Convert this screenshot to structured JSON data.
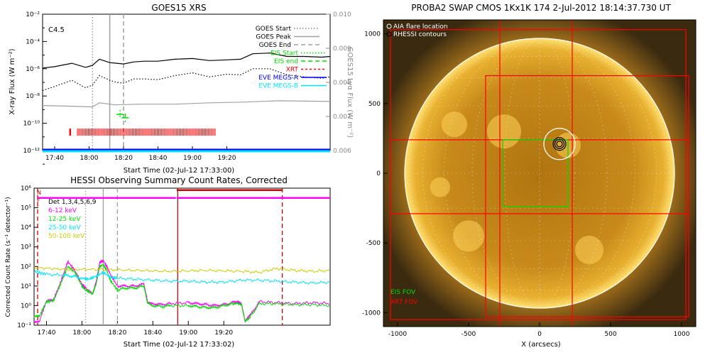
{
  "chart_data": [
    {
      "id": "goes",
      "type": "line",
      "title": "GOES15 XRS",
      "xlabel": "Start Time (02-Jul-12 17:33:00)",
      "ylabel": "X-ray Flux (W m⁻²)",
      "y2label": "GOES15 Lyα Flux (W m⁻²)",
      "x_ticks": [
        "17:40",
        "18:00",
        "18:20",
        "18:40",
        "19:00",
        "19:20"
      ],
      "xlim_min": [
        33,
        200
      ],
      "y_log_range": [
        -12,
        -2
      ],
      "y_ticks": [
        "10⁻²",
        "10⁻⁴",
        "10⁻⁶",
        "10⁻⁸",
        "10⁻¹⁰",
        "10⁻¹²"
      ],
      "y2lim": [
        0.006,
        0.01
      ],
      "y2_ticks": [
        "0.010",
        "0.009",
        "0.008",
        "0.007",
        "0.006"
      ],
      "annotation": "C4.5",
      "vlines": [
        {
          "label": "GOES Start",
          "t": 62,
          "style": "dotted",
          "color": "#a0a0a0"
        },
        {
          "label": "GOES Peak",
          "t": 72,
          "style": "solid",
          "color": "#a0a0a0"
        },
        {
          "label": "GOES End",
          "t": 80,
          "style": "dashed",
          "color": "#a0a0a0"
        }
      ],
      "legend": [
        {
          "label": "GOES Start",
          "style": "dotted",
          "color": "#808080"
        },
        {
          "label": "GOES Peak",
          "style": "solid",
          "color": "#a0a0a0"
        },
        {
          "label": "GOES End",
          "style": "dashed",
          "color": "#a0a0a0"
        },
        {
          "label": "EIS Start",
          "style": "dotted",
          "color": "#00dd00"
        },
        {
          "label": "EIS end",
          "style": "dashed",
          "color": "#00dd00"
        },
        {
          "label": "XRT",
          "style": "dash",
          "color": "#ff0000"
        },
        {
          "label": "EVE MEGS-A",
          "style": "solid",
          "color": "#0000ff"
        },
        {
          "label": "EVE MEGS-B",
          "style": "solid",
          "color": "#00e5ff"
        }
      ],
      "series": [
        {
          "name": "",
          "color": "#000000",
          "style": "solid",
          "x": [
            33,
            40,
            50,
            58,
            62,
            66,
            72,
            76,
            80,
            86,
            92,
            100,
            110,
            120,
            130,
            140,
            148,
            155,
            165,
            175,
            185,
            195,
            200
          ],
          "y": [
            -5.95,
            -5.85,
            -5.6,
            -5.9,
            -5.75,
            -5.3,
            -5.55,
            -5.6,
            -5.65,
            -5.5,
            -5.45,
            -5.45,
            -5.3,
            -5.25,
            -5.4,
            -5.35,
            -5.3,
            -4.9,
            -4.85,
            -5.1,
            -5.1,
            -5.15,
            -5.1
          ]
        },
        {
          "name": "",
          "color": "#000000",
          "style": "dotted",
          "x": [
            33,
            40,
            50,
            58,
            62,
            66,
            72,
            76,
            80,
            86,
            92,
            100,
            110,
            120,
            130,
            140,
            148,
            155,
            165,
            175,
            185,
            195,
            200
          ],
          "y": [
            -7.6,
            -7.3,
            -6.85,
            -7.4,
            -7.2,
            -6.5,
            -6.85,
            -7.0,
            -7.05,
            -6.75,
            -6.75,
            -6.8,
            -6.5,
            -6.3,
            -6.6,
            -6.4,
            -6.45,
            -6.0,
            -6.0,
            -6.45,
            -6.6,
            -6.7,
            -6.6
          ]
        },
        {
          "name": "",
          "color": "#a0a0a0",
          "style": "solid",
          "x": [
            33,
            50,
            62,
            66,
            75,
            90,
            110,
            130,
            150,
            170,
            200
          ],
          "y": [
            -8.7,
            -8.75,
            -8.8,
            -8.5,
            -8.65,
            -8.6,
            -8.6,
            -8.5,
            -8.45,
            -8.35,
            -8.4
          ]
        },
        {
          "name": "",
          "color": "#0000ff",
          "style": "solid",
          "x": [
            33,
            200
          ],
          "y": [
            -11.95,
            -11.95
          ]
        },
        {
          "name": "",
          "color": "#00e5ff",
          "style": "solid",
          "x": [
            33,
            200
          ],
          "y": [
            -12.05,
            -12.05
          ]
        }
      ],
      "eis_marks": [
        {
          "t": 78,
          "y": -9.35,
          "style": "dotted"
        },
        {
          "t": 81,
          "y": -9.6,
          "style": "dashed"
        }
      ],
      "xrt_segments": [
        [
          34.5,
          35.5
        ],
        [
          50,
          61.5
        ]
      ],
      "xrt_gap_start": [
        48.5,
        49.5
      ],
      "xrt_y": -10.65
    },
    {
      "id": "hessi",
      "type": "line",
      "title": "HESSI Observing Summary Count Rates, Corrected",
      "xlabel": "Start Time (02-Jul-12 17:33:02)",
      "ylabel": "Corrected Count Rate (s⁻¹ detector⁻¹)",
      "x_ticks": [
        "17:40",
        "18:00",
        "18:20",
        "18:40",
        "19:00",
        "19:20"
      ],
      "xlim_min": [
        33,
        200
      ],
      "y_log_range": [
        -1,
        6
      ],
      "y_ticks": [
        "10⁶",
        "10⁵",
        "10⁴",
        "10³",
        "10²",
        "10¹",
        "10⁰",
        "10⁻¹"
      ],
      "flags": [
        "N",
        "F"
      ],
      "legend": [
        {
          "label": "Det 1,3,4,5,6,9",
          "color": "#000000"
        },
        {
          "label": "6-12 keV",
          "color": "#ff00ff"
        },
        {
          "label": "12-25 keV",
          "color": "#00dd00"
        },
        {
          "label": "25-50 keV",
          "color": "#00e5ff"
        },
        {
          "label": "50-100 keV",
          "color": "#cccc00"
        }
      ],
      "series": [
        {
          "name": "6-12 keV",
          "color": "#ff00ff",
          "x": [
            33,
            36,
            40,
            44,
            48,
            52,
            56,
            60,
            62,
            66,
            68,
            70,
            72,
            74,
            76,
            80,
            85,
            90,
            95,
            97,
            100,
            105,
            110,
            120,
            125,
            130,
            135,
            140,
            145,
            148,
            150,
            152,
            155,
            160,
            170,
            180,
            190,
            200
          ],
          "y": [
            -0.8,
            -0.8,
            0.25,
            0.3,
            1.2,
            2.25,
            1.8,
            1.1,
            0.9,
            0.6,
            1.2,
            2.2,
            2.3,
            2.0,
            1.6,
            1.0,
            1.0,
            1.0,
            1.1,
            0.2,
            0.1,
            0.05,
            0.1,
            0.15,
            0.1,
            0.05,
            0.0,
            0.05,
            0.15,
            0.2,
            0.1,
            -0.8,
            -0.5,
            0.2,
            0.15,
            0.1,
            0.15,
            0.1
          ]
        },
        {
          "name": "12-25 keV",
          "color": "#00dd00",
          "x": [
            33,
            36,
            40,
            44,
            48,
            52,
            56,
            60,
            62,
            66,
            68,
            70,
            72,
            74,
            76,
            80,
            85,
            90,
            95,
            97,
            100,
            105,
            110,
            120,
            125,
            130,
            135,
            140,
            145,
            148,
            150,
            152,
            155,
            160,
            170,
            180,
            190,
            200
          ],
          "y": [
            -0.6,
            -0.55,
            0.2,
            0.25,
            1.1,
            2.0,
            1.7,
            1.0,
            0.8,
            0.6,
            1.1,
            2.0,
            2.1,
            1.8,
            1.3,
            0.8,
            0.9,
            0.9,
            1.0,
            0.1,
            0.0,
            -0.05,
            0.0,
            0.0,
            -0.05,
            -0.1,
            -0.1,
            0.0,
            0.1,
            0.1,
            0.05,
            -0.8,
            -0.55,
            0.1,
            0.1,
            0.05,
            0.05,
            0.0
          ]
        },
        {
          "name": "25-50 keV",
          "color": "#00e5ff",
          "x": [
            33,
            40,
            50,
            55,
            60,
            64,
            68,
            72,
            76,
            80,
            90,
            100,
            110,
            120,
            130,
            140,
            150,
            160,
            170,
            180,
            190,
            200
          ],
          "y": [
            1.75,
            1.6,
            1.55,
            1.5,
            1.4,
            1.35,
            1.5,
            1.7,
            1.45,
            1.4,
            1.35,
            1.3,
            1.25,
            1.25,
            1.2,
            1.2,
            1.3,
            1.3,
            1.25,
            1.2,
            1.15,
            1.2
          ]
        },
        {
          "name": "50-100 keV",
          "color": "#cccc00",
          "x": [
            33,
            50,
            70,
            90,
            110,
            130,
            150,
            160,
            170,
            180,
            190,
            200
          ],
          "y": [
            1.95,
            1.85,
            1.85,
            1.8,
            1.75,
            1.8,
            1.75,
            1.7,
            1.9,
            1.8,
            1.75,
            1.8
          ]
        }
      ],
      "flag_bars": [
        {
          "name": "",
          "color": "#ff00ff",
          "segments": [
            [
              35,
              113
            ],
            [
              113.5,
              200
            ]
          ],
          "y": 5.5
        },
        {
          "name": "",
          "color": "#cc0000",
          "segments": [
            [
              113.5,
              173
            ]
          ],
          "y": 5.9
        }
      ],
      "vlines": [
        {
          "t": 62,
          "style": "dotted",
          "color": "#a0a0a0"
        },
        {
          "t": 72,
          "style": "solid",
          "color": "#a0a0a0"
        },
        {
          "t": 80,
          "style": "dashed",
          "color": "#a0a0a0"
        },
        {
          "t": 35,
          "style": "dashed",
          "color": "#cc0000"
        },
        {
          "t": 114,
          "style": "solid",
          "color": "#cc0000"
        },
        {
          "t": 173,
          "style": "dashed",
          "color": "#cc0000"
        }
      ]
    },
    {
      "id": "swap",
      "type": "image",
      "title": "PROBA2 SWAP CMOS 1Kx1K 174   2-Jul-2012 18:14:37.730 UT",
      "xlabel": "X (arcsecs)",
      "ylabel": "",
      "xlim": [
        -1100,
        1100
      ],
      "ylim": [
        -1100,
        1100
      ],
      "x_ticks": [
        "-1000",
        "-500",
        "0",
        "500",
        "1000"
      ],
      "y_ticks": [
        "1000",
        "500",
        "0",
        "-500",
        "-1000"
      ],
      "solar_radius": 950,
      "legend": [
        {
          "label": "AIA flare location",
          "marker": "circle",
          "color": "#ffffff"
        },
        {
          "label": "RHESSI contours",
          "marker": "circle",
          "color": "#000000"
        }
      ],
      "flare": {
        "x": 140,
        "y": 210,
        "r": 110
      },
      "eis_fov": {
        "label": "EIS FOV",
        "color": "#00dd00",
        "x0": -260,
        "x1": 200,
        "y0": -240,
        "y1": 240
      },
      "xrt_fov": {
        "label": "XRT FOV",
        "color": "#ff0000"
      },
      "xrt_boxes": [
        {
          "x0": -1050,
          "x1": 1030,
          "y0": -1050,
          "y1": 1030
        },
        {
          "x0": -380,
          "x1": 1050,
          "y0": -1030,
          "y1": 700
        },
        {
          "x0": -1050,
          "x1": 1050,
          "y0": -290,
          "y1": 240
        }
      ],
      "xrt_vlines": [
        -280,
        230
      ]
    }
  ]
}
